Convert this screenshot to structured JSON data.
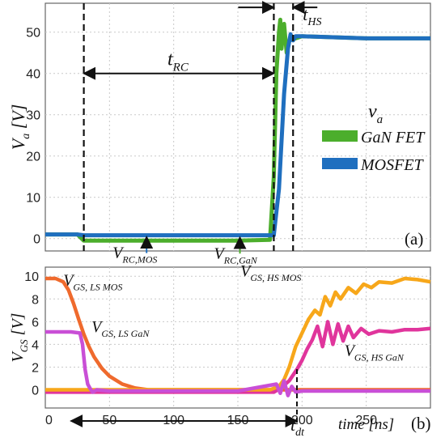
{
  "chart_data": [
    {
      "type": "line",
      "panel_label": "(a)",
      "ylabel": "V",
      "ylabel_sub": "a",
      "ylabel_unit": "[V]",
      "xlim": [
        0,
        300
      ],
      "ylim": [
        -3,
        57
      ],
      "yticks": [
        "0",
        "10",
        "20",
        "30",
        "40",
        "50"
      ],
      "grid": true,
      "legend": {
        "title": "v",
        "title_sub": "a",
        "placement": "right-middle",
        "entries": [
          {
            "name": "GaN FET",
            "color": "#4cae2c"
          },
          {
            "name": "MOSFET",
            "color": "#1f6fbf"
          }
        ]
      },
      "series": [
        {
          "name": "GaN FET",
          "color": "#4cae2c",
          "x": [
            0,
            25,
            30,
            60,
            100,
            150,
            175,
            178,
            180,
            182,
            183,
            184,
            186,
            188,
            190,
            195,
            200,
            250,
            300
          ],
          "y": [
            1,
            1,
            -0.5,
            -0.5,
            -0.5,
            -0.5,
            -0.3,
            15,
            40,
            50,
            53,
            46,
            52,
            45,
            48,
            48.5,
            49,
            48.5,
            48.5
          ]
        },
        {
          "name": "MOSFET",
          "color": "#1f6fbf",
          "x": [
            0,
            25,
            30,
            60,
            100,
            150,
            178,
            182,
            186,
            189,
            191,
            193,
            195,
            200,
            250,
            300
          ],
          "y": [
            1,
            1,
            0.8,
            0.8,
            0.8,
            0.8,
            0.8,
            12,
            35,
            46,
            49.5,
            48,
            49,
            49,
            48.5,
            48.5
          ]
        }
      ],
      "annotations": {
        "t_rc": {
          "label": "t",
          "sub": "RC",
          "from": 30,
          "to": 178,
          "y": 40
        },
        "t_hs": {
          "label": "t",
          "sub": "HS",
          "from": 178,
          "to": 193,
          "y": 56
        },
        "v_rc_mos": {
          "label": "V",
          "sub": "RC,MOS",
          "x": 60,
          "y": 0.8
        },
        "v_rc_gan": {
          "label": "V",
          "sub": "RC,GaN",
          "x": 139,
          "y": -0.5
        }
      },
      "markers": [
        30,
        178,
        193
      ]
    },
    {
      "type": "line",
      "panel_label": "(b)",
      "ylabel": "V",
      "ylabel_sub": "GS",
      "ylabel_unit": "[V]",
      "xlabel": "time [ns]",
      "xlim": [
        0,
        300
      ],
      "ylim": [
        -1.6,
        10.8
      ],
      "xticks": [
        "0",
        "50",
        "100",
        "150",
        "200",
        "250"
      ],
      "yticks": [
        "0",
        "2",
        "4",
        "6",
        "8",
        "10"
      ],
      "grid": true,
      "series": [
        {
          "name": "GS, LS MOS",
          "color": "#ef6a2d",
          "x": [
            0,
            8,
            14,
            18,
            22,
            26,
            30,
            34,
            38,
            44,
            50,
            60,
            70,
            80,
            100,
            150,
            175,
            300
          ],
          "y": [
            9.8,
            9.8,
            9.5,
            8.8,
            7.6,
            6.2,
            4.9,
            3.8,
            2.9,
            1.9,
            1.2,
            0.5,
            0.15,
            0,
            0,
            0,
            0,
            0
          ]
        },
        {
          "name": "GS, LS GaN",
          "color": "#c94fd6",
          "x": [
            0,
            10,
            20,
            27,
            29,
            31,
            33,
            35,
            37,
            40,
            50,
            100,
            150,
            180,
            183,
            186,
            189,
            192,
            195,
            200,
            250,
            300
          ],
          "y": [
            5.1,
            5.1,
            5.1,
            5.0,
            4.0,
            1.8,
            0.5,
            0.1,
            -0.2,
            0,
            -0.1,
            -0.1,
            -0.1,
            0.5,
            -0.3,
            0.8,
            -0.5,
            0.3,
            -0.2,
            -0.1,
            -0.1,
            -0.1
          ]
        },
        {
          "name": "GS, HS MOS",
          "color": "#f7a71a",
          "x": [
            0,
            50,
            100,
            150,
            175,
            182,
            186,
            190,
            195,
            200,
            205,
            210,
            214,
            218,
            222,
            226,
            230,
            236,
            242,
            248,
            254,
            260,
            270,
            280,
            290,
            300
          ],
          "y": [
            0,
            0,
            0,
            0,
            0,
            0.3,
            0.9,
            2.0,
            3.8,
            5.0,
            6.2,
            7.0,
            6.6,
            8.2,
            7.4,
            8.6,
            8.0,
            9.0,
            8.5,
            9.3,
            9.0,
            9.5,
            9.4,
            9.8,
            9.7,
            9.5
          ]
        },
        {
          "name": "GS, HS GaN",
          "color": "#e0359c",
          "x": [
            0,
            50,
            100,
            150,
            178,
            184,
            190,
            196,
            200,
            204,
            208,
            212,
            216,
            220,
            224,
            228,
            232,
            236,
            240,
            246,
            252,
            260,
            270,
            280,
            290,
            300
          ],
          "y": [
            -0.2,
            -0.2,
            -0.2,
            -0.2,
            -0.2,
            0.2,
            0.8,
            1.8,
            2.6,
            3.6,
            4.4,
            5.6,
            3.8,
            6.0,
            4.0,
            5.8,
            4.3,
            5.6,
            4.6,
            5.4,
            4.9,
            5.2,
            5.1,
            5.3,
            5.3,
            5.4
          ]
        }
      ],
      "labels": {
        "ls_mos": {
          "label": "V",
          "sub": "GS, LS MOS",
          "x": 14,
          "y": 9.2
        },
        "ls_gan": {
          "label": "V",
          "sub": "GS, LS GaN",
          "x": 36,
          "y": 5.1
        },
        "hs_mos": {
          "label": "V",
          "sub": "GS, HS MOS",
          "x": 152,
          "y": 10.0
        },
        "hs_gan": {
          "label": "V",
          "sub": "GS, HS GaN",
          "x": 233,
          "y": 3.0
        }
      },
      "annotations": {
        "t_dt": {
          "label": "t",
          "sub": "dt",
          "from": 20,
          "to": 196
        }
      }
    }
  ]
}
